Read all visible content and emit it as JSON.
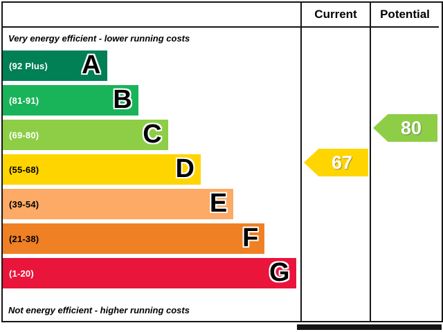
{
  "header": {
    "current": "Current",
    "potential": "Potential"
  },
  "notes": {
    "top": "Very energy efficient - lower running costs",
    "bottom": "Not energy efficient - higher running costs"
  },
  "bands": [
    {
      "letter": "A",
      "range": "(92 Plus)",
      "color": "#008054",
      "width_pct": 35,
      "label_color": "#ffffff"
    },
    {
      "letter": "B",
      "range": "(81-91)",
      "color": "#19b459",
      "width_pct": 45.5,
      "label_color": "#ffffff"
    },
    {
      "letter": "C",
      "range": "(69-80)",
      "color": "#8dce46",
      "width_pct": 55.5,
      "label_color": "#ffffff"
    },
    {
      "letter": "D",
      "range": "(55-68)",
      "color": "#ffd500",
      "width_pct": 66.5,
      "label_color": "#000000"
    },
    {
      "letter": "E",
      "range": "(39-54)",
      "color": "#fcaa65",
      "width_pct": 77.5,
      "label_color": "#000000"
    },
    {
      "letter": "F",
      "range": "(21-38)",
      "color": "#ef8023",
      "width_pct": 88,
      "label_color": "#000000"
    },
    {
      "letter": "G",
      "range": "(1-20)",
      "color": "#e9153b",
      "width_pct": 98.5,
      "label_color": "#ffffff"
    }
  ],
  "ratings": {
    "current": {
      "value": "67",
      "band": "D",
      "band_index": 3,
      "arrow_color": "#ffd500"
    },
    "potential": {
      "value": "80",
      "band": "C",
      "band_index": 2,
      "arrow_color": "#8dce46"
    }
  },
  "ui_colors": {
    "border": "#141414",
    "background": "#ffffff"
  },
  "chart_data": {
    "type": "bar",
    "categories": [
      "A",
      "B",
      "C",
      "D",
      "E",
      "F",
      "G"
    ],
    "band_ranges": [
      "92 Plus",
      "81-91",
      "69-80",
      "55-68",
      "39-54",
      "21-38",
      "1-20"
    ],
    "band_colors": [
      "#008054",
      "#19b459",
      "#8dce46",
      "#ffd500",
      "#fcaa65",
      "#ef8023",
      "#e9153b"
    ],
    "bar_lengths_relative_pct": [
      35,
      45.5,
      55.5,
      66.5,
      77.5,
      88,
      98.5
    ],
    "series": [
      {
        "name": "Current",
        "value": 67,
        "band": "D"
      },
      {
        "name": "Potential",
        "value": 80,
        "band": "C"
      }
    ],
    "column_headers": [
      "Current",
      "Potential"
    ],
    "top_annotation": "Very energy efficient - lower running costs",
    "bottom_annotation": "Not energy efficient - higher running costs",
    "legend_position": "none",
    "grid": false
  }
}
